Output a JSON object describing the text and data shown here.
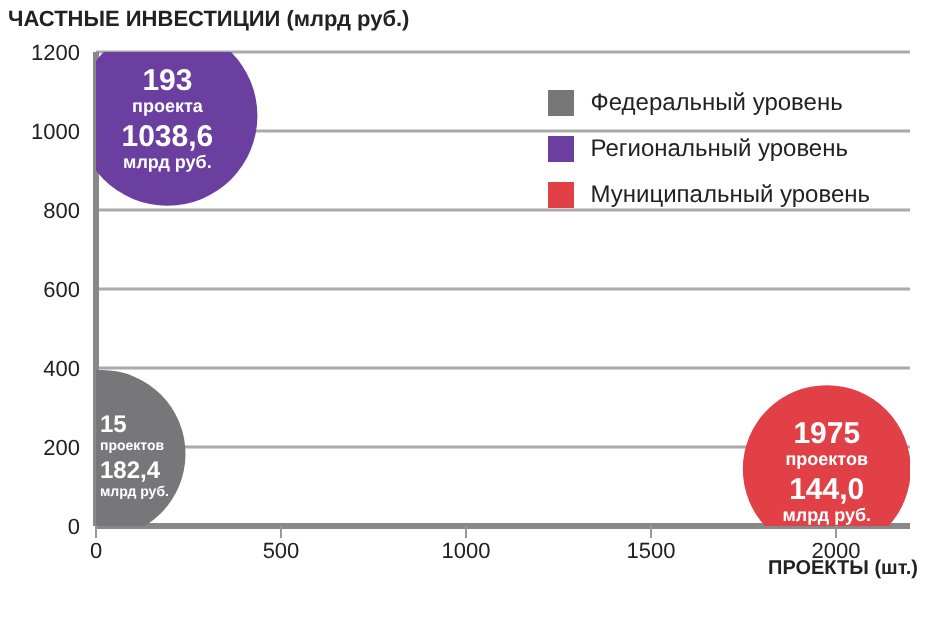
{
  "chart_data": {
    "type": "bubble",
    "title": "ЧАСТНЫЕ ИНВЕСТИЦИИ (млрд руб.)",
    "xlabel": "ПРОЕКТЫ (шт.)",
    "series": [
      {
        "name": "Федеральный уровень",
        "color": "#77777a",
        "x": [
          15
        ],
        "values": [
          182.4
        ],
        "sizes": [
          0.87
        ],
        "value_labels": [
          "15\nпроектов\n182,4\nмлрд руб."
        ]
      },
      {
        "name": "Региональный уровень",
        "color": "#6a3fa0",
        "x": [
          193
        ],
        "values": [
          1038.6
        ],
        "sizes": [
          1
        ],
        "value_labels": [
          "193\nпроекта\n1038,6\nмлрд руб."
        ]
      },
      {
        "name": "Муниципальный уровень",
        "color": "#e04046",
        "x": [
          1975
        ],
        "values": [
          144.0
        ],
        "sizes": [
          0.87
        ],
        "value_labels": [
          "1975\nпроектов\n144,0\nмлрд руб."
        ]
      }
    ],
    "xlim": [
      0,
      2200
    ],
    "xticks": [
      0,
      500,
      1000,
      1500,
      2000
    ],
    "ylim": [
      0,
      1200
    ],
    "yticks": [
      0,
      200,
      400,
      600,
      800,
      1000,
      1200
    ],
    "grid": "y",
    "legend": "top right"
  }
}
